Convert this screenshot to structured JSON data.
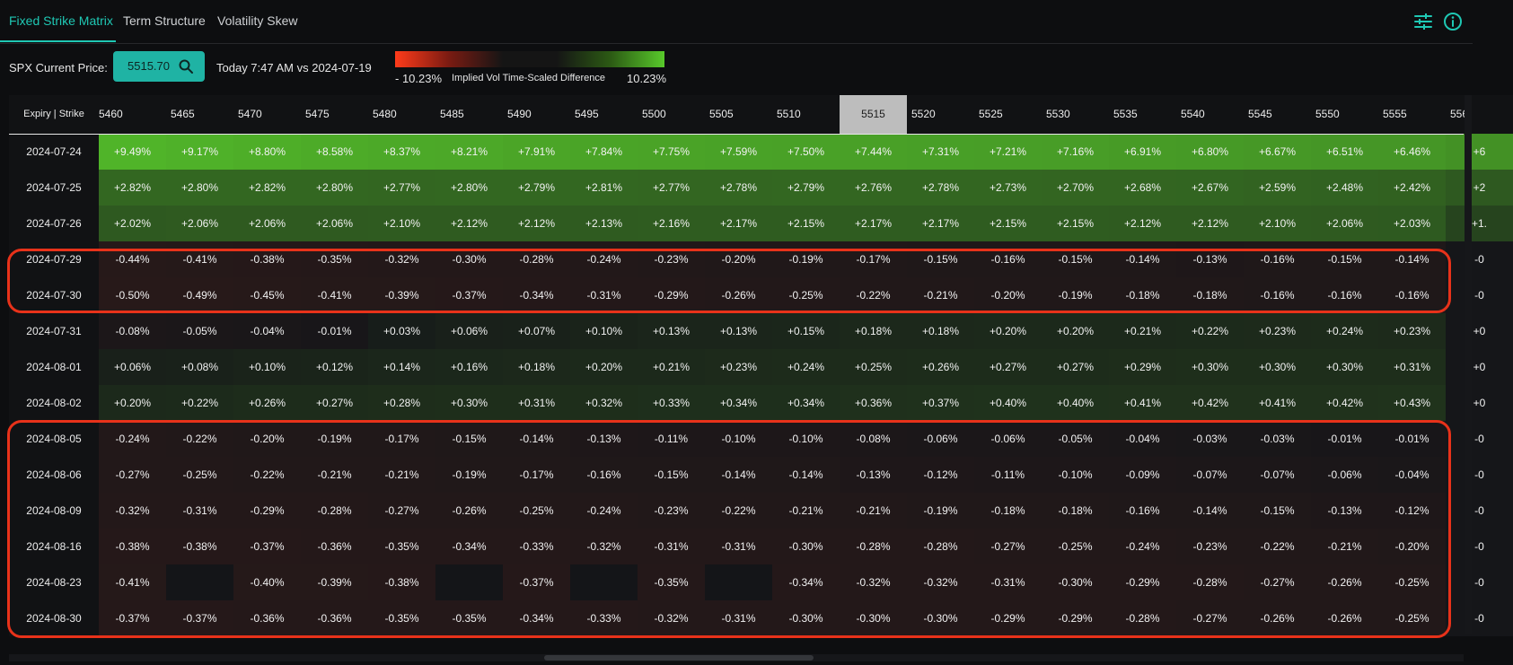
{
  "tabs": [
    {
      "label": "Fixed Strike Matrix",
      "active": true
    },
    {
      "label": "Term Structure",
      "active": false
    },
    {
      "label": "Volatility Skew",
      "active": false
    }
  ],
  "toolbar_icons": [
    "sliders-icon",
    "info-icon"
  ],
  "controls": {
    "price_label": "SPX Current Price:",
    "price_value": "5515.70",
    "compare_text": "Today 7:47 AM vs 2024-07-19"
  },
  "legend": {
    "min": "- 10.23%",
    "title": "Implied Vol Time-Scaled Difference",
    "max": "10.23%",
    "colors": {
      "negative": "#ff3b1a",
      "neutral": "#151515",
      "positive": "#58c92b"
    }
  },
  "grid": {
    "corner": "Expiry | Strike",
    "strikes": [
      "5460",
      "5465",
      "5470",
      "5475",
      "5480",
      "5485",
      "5490",
      "5495",
      "5500",
      "5505",
      "5510",
      "5515",
      "5520",
      "5525",
      "5530",
      "5535",
      "5540",
      "5545",
      "5550",
      "5555",
      "556"
    ],
    "current_strike": "5515",
    "rows": [
      {
        "expiry": "2024-07-24",
        "cells": [
          "+9.49%",
          "+9.17%",
          "+8.80%",
          "+8.58%",
          "+8.37%",
          "+8.21%",
          "+7.91%",
          "+7.84%",
          "+7.75%",
          "+7.59%",
          "+7.50%",
          "+7.44%",
          "+7.31%",
          "+7.21%",
          "+7.16%",
          "+6.91%",
          "+6.80%",
          "+6.67%",
          "+6.51%",
          "+6.46%",
          "+6"
        ]
      },
      {
        "expiry": "2024-07-25",
        "cells": [
          "+2.82%",
          "+2.80%",
          "+2.82%",
          "+2.80%",
          "+2.77%",
          "+2.80%",
          "+2.79%",
          "+2.81%",
          "+2.77%",
          "+2.78%",
          "+2.79%",
          "+2.76%",
          "+2.78%",
          "+2.73%",
          "+2.70%",
          "+2.68%",
          "+2.67%",
          "+2.59%",
          "+2.48%",
          "+2.42%",
          "+2"
        ]
      },
      {
        "expiry": "2024-07-26",
        "cells": [
          "+2.02%",
          "+2.06%",
          "+2.06%",
          "+2.06%",
          "+2.10%",
          "+2.12%",
          "+2.12%",
          "+2.13%",
          "+2.16%",
          "+2.17%",
          "+2.15%",
          "+2.17%",
          "+2.17%",
          "+2.15%",
          "+2.15%",
          "+2.12%",
          "+2.12%",
          "+2.10%",
          "+2.06%",
          "+2.03%",
          "+1."
        ]
      },
      {
        "expiry": "2024-07-29",
        "cells": [
          "-0.44%",
          "-0.41%",
          "-0.38%",
          "-0.35%",
          "-0.32%",
          "-0.30%",
          "-0.28%",
          "-0.24%",
          "-0.23%",
          "-0.20%",
          "-0.19%",
          "-0.17%",
          "-0.15%",
          "-0.16%",
          "-0.15%",
          "-0.14%",
          "-0.13%",
          "-0.16%",
          "-0.15%",
          "-0.14%",
          "-0"
        ]
      },
      {
        "expiry": "2024-07-30",
        "cells": [
          "-0.50%",
          "-0.49%",
          "-0.45%",
          "-0.41%",
          "-0.39%",
          "-0.37%",
          "-0.34%",
          "-0.31%",
          "-0.29%",
          "-0.26%",
          "-0.25%",
          "-0.22%",
          "-0.21%",
          "-0.20%",
          "-0.19%",
          "-0.18%",
          "-0.18%",
          "-0.16%",
          "-0.16%",
          "-0.16%",
          "-0"
        ]
      },
      {
        "expiry": "2024-07-31",
        "cells": [
          "-0.08%",
          "-0.05%",
          "-0.04%",
          "-0.01%",
          "+0.03%",
          "+0.06%",
          "+0.07%",
          "+0.10%",
          "+0.13%",
          "+0.13%",
          "+0.15%",
          "+0.18%",
          "+0.18%",
          "+0.20%",
          "+0.20%",
          "+0.21%",
          "+0.22%",
          "+0.23%",
          "+0.24%",
          "+0.23%",
          "+0"
        ]
      },
      {
        "expiry": "2024-08-01",
        "cells": [
          "+0.06%",
          "+0.08%",
          "+0.10%",
          "+0.12%",
          "+0.14%",
          "+0.16%",
          "+0.18%",
          "+0.20%",
          "+0.21%",
          "+0.23%",
          "+0.24%",
          "+0.25%",
          "+0.26%",
          "+0.27%",
          "+0.27%",
          "+0.29%",
          "+0.30%",
          "+0.30%",
          "+0.30%",
          "+0.31%",
          "+0"
        ]
      },
      {
        "expiry": "2024-08-02",
        "cells": [
          "+0.20%",
          "+0.22%",
          "+0.26%",
          "+0.27%",
          "+0.28%",
          "+0.30%",
          "+0.31%",
          "+0.32%",
          "+0.33%",
          "+0.34%",
          "+0.34%",
          "+0.36%",
          "+0.37%",
          "+0.40%",
          "+0.40%",
          "+0.41%",
          "+0.42%",
          "+0.41%",
          "+0.42%",
          "+0.43%",
          "+0"
        ]
      },
      {
        "expiry": "2024-08-05",
        "cells": [
          "-0.24%",
          "-0.22%",
          "-0.20%",
          "-0.19%",
          "-0.17%",
          "-0.15%",
          "-0.14%",
          "-0.13%",
          "-0.11%",
          "-0.10%",
          "-0.10%",
          "-0.08%",
          "-0.06%",
          "-0.06%",
          "-0.05%",
          "-0.04%",
          "-0.03%",
          "-0.03%",
          "-0.01%",
          "-0.01%",
          "-0"
        ]
      },
      {
        "expiry": "2024-08-06",
        "cells": [
          "-0.27%",
          "-0.25%",
          "-0.22%",
          "-0.21%",
          "-0.21%",
          "-0.19%",
          "-0.17%",
          "-0.16%",
          "-0.15%",
          "-0.14%",
          "-0.14%",
          "-0.13%",
          "-0.12%",
          "-0.11%",
          "-0.10%",
          "-0.09%",
          "-0.07%",
          "-0.07%",
          "-0.06%",
          "-0.04%",
          "-0"
        ]
      },
      {
        "expiry": "2024-08-09",
        "cells": [
          "-0.32%",
          "-0.31%",
          "-0.29%",
          "-0.28%",
          "-0.27%",
          "-0.26%",
          "-0.25%",
          "-0.24%",
          "-0.23%",
          "-0.22%",
          "-0.21%",
          "-0.21%",
          "-0.19%",
          "-0.18%",
          "-0.18%",
          "-0.16%",
          "-0.14%",
          "-0.15%",
          "-0.13%",
          "-0.12%",
          "-0"
        ]
      },
      {
        "expiry": "2024-08-16",
        "cells": [
          "-0.38%",
          "-0.38%",
          "-0.37%",
          "-0.36%",
          "-0.35%",
          "-0.34%",
          "-0.33%",
          "-0.32%",
          "-0.31%",
          "-0.31%",
          "-0.30%",
          "-0.28%",
          "-0.28%",
          "-0.27%",
          "-0.25%",
          "-0.24%",
          "-0.23%",
          "-0.22%",
          "-0.21%",
          "-0.20%",
          "-0"
        ]
      },
      {
        "expiry": "2024-08-23",
        "cells": [
          "-0.41%",
          "",
          "-0.40%",
          "-0.39%",
          "-0.38%",
          "",
          "-0.37%",
          "",
          "-0.35%",
          "",
          "-0.34%",
          "-0.32%",
          "-0.32%",
          "-0.31%",
          "-0.30%",
          "-0.29%",
          "-0.28%",
          "-0.27%",
          "-0.26%",
          "-0.25%",
          "-0"
        ]
      },
      {
        "expiry": "2024-08-30",
        "cells": [
          "-0.37%",
          "-0.37%",
          "-0.36%",
          "-0.36%",
          "-0.35%",
          "-0.35%",
          "-0.34%",
          "-0.33%",
          "-0.32%",
          "-0.31%",
          "-0.30%",
          "-0.30%",
          "-0.30%",
          "-0.29%",
          "-0.29%",
          "-0.28%",
          "-0.27%",
          "-0.26%",
          "-0.26%",
          "-0.25%",
          "-0"
        ]
      }
    ]
  }
}
